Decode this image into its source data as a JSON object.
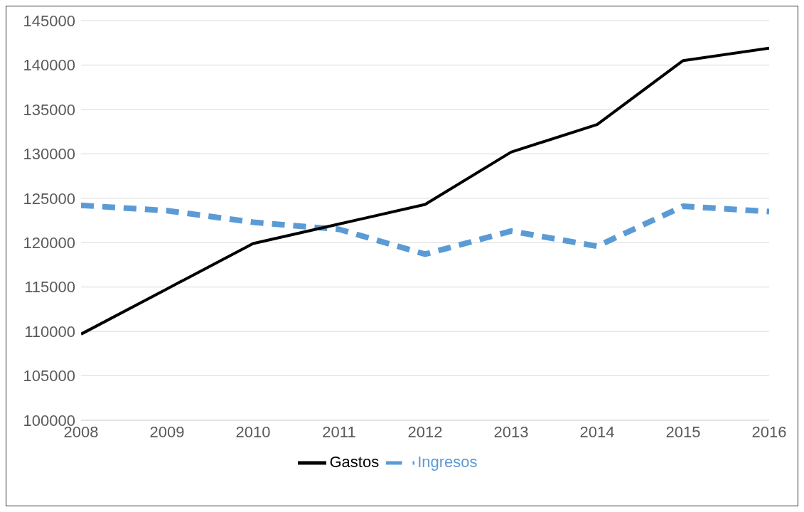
{
  "chart_data": {
    "type": "line",
    "x": [
      2008,
      2009,
      2010,
      2011,
      2012,
      2013,
      2014,
      2015,
      2016
    ],
    "xlim": [
      2008,
      2016
    ],
    "xticks": [
      2008,
      2009,
      2010,
      2011,
      2012,
      2013,
      2014,
      2015,
      2016
    ],
    "ylim": [
      100000,
      145000
    ],
    "yticks": [
      100000,
      105000,
      110000,
      115000,
      120000,
      125000,
      130000,
      135000,
      140000,
      145000
    ],
    "grid": "y",
    "legend": "bottom",
    "marker": "none",
    "series": [
      {
        "name": "Ingresos",
        "color": "#5b9bd5",
        "line_style": "dashed",
        "values": [
          124200,
          123600,
          122300,
          121500,
          118700,
          121300,
          119600,
          124100,
          123500
        ]
      },
      {
        "name": "Gastos",
        "color": "#000000",
        "line_style": "solid",
        "values": [
          109700,
          114800,
          119900,
          122100,
          124300,
          130200,
          133300,
          140500,
          141900
        ]
      }
    ]
  }
}
